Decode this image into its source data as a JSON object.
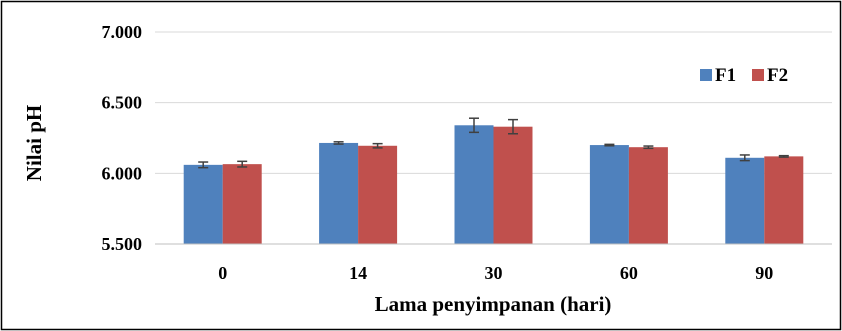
{
  "chart_data": {
    "type": "bar",
    "title": "",
    "xlabel": "Lama penyimpanan (hari)",
    "ylabel": "Nilai pH",
    "categories": [
      "0",
      "14",
      "30",
      "60",
      "90"
    ],
    "yticks": [
      "5.500",
      "6.000",
      "6.500",
      "7.000"
    ],
    "ylim": [
      5.5,
      7.0
    ],
    "grid": true,
    "legend": "top-right",
    "series": [
      {
        "name": "F1",
        "color": "#4f81bd",
        "values": [
          6.06,
          6.215,
          6.34,
          6.2,
          6.11
        ],
        "errors": [
          0.02,
          0.008,
          0.05,
          0.005,
          0.02
        ]
      },
      {
        "name": "F2",
        "color": "#c0504d",
        "values": [
          6.065,
          6.195,
          6.33,
          6.185,
          6.12
        ],
        "errors": [
          0.02,
          0.015,
          0.05,
          0.008,
          0.005
        ]
      }
    ]
  }
}
